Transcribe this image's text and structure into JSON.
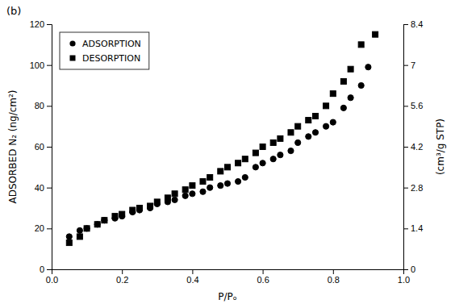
{
  "chart_data": {
    "type": "scatter",
    "xlabel": "P/Pₒ",
    "ylabel": "ADSORBED N₂ (ng/cm²)",
    "y2label": "(cm³/g STP)",
    "annotations": [
      "(b)"
    ],
    "series": [
      {
        "name": "ADSORPTION",
        "color": "#000000",
        "marker": "circle",
        "x": [
          0.05,
          0.08,
          0.1,
          0.13,
          0.15,
          0.18,
          0.2,
          0.23,
          0.25,
          0.28,
          0.3,
          0.33,
          0.35,
          0.38,
          0.4,
          0.43,
          0.45,
          0.48,
          0.5,
          0.53,
          0.55,
          0.58,
          0.6,
          0.63,
          0.65,
          0.68,
          0.7,
          0.73,
          0.75,
          0.78,
          0.8,
          0.83,
          0.85,
          0.88,
          0.9
        ],
        "values": [
          16,
          19,
          20,
          22,
          24,
          25,
          26,
          28,
          29,
          30,
          32,
          33,
          34,
          36,
          37,
          38,
          40,
          41,
          42,
          43,
          45,
          50,
          52,
          54,
          56,
          58,
          62,
          65,
          67,
          70,
          72,
          79,
          84,
          90,
          99
        ]
      },
      {
        "name": "DESORPTION",
        "color": "#000000",
        "marker": "square",
        "x": [
          0.05,
          0.08,
          0.1,
          0.13,
          0.15,
          0.18,
          0.2,
          0.23,
          0.25,
          0.28,
          0.3,
          0.33,
          0.35,
          0.38,
          0.4,
          0.43,
          0.45,
          0.48,
          0.5,
          0.53,
          0.55,
          0.58,
          0.6,
          0.63,
          0.65,
          0.68,
          0.7,
          0.73,
          0.75,
          0.78,
          0.8,
          0.83,
          0.85,
          0.88,
          0.92
        ],
        "values": [
          13,
          16,
          20,
          22,
          24,
          26,
          27,
          29,
          30,
          31,
          33,
          35,
          37,
          39,
          41,
          43,
          45,
          48,
          50,
          52,
          54,
          57,
          60,
          62,
          64,
          67,
          70,
          73,
          75,
          80,
          86,
          92,
          98,
          110,
          115
        ]
      }
    ],
    "xlim": [
      0,
      1.0
    ],
    "xticks": [
      {
        "value": 0.0,
        "label": "0.0"
      },
      0.2,
      0.4,
      0.6,
      0.8,
      {
        "value": 1.0,
        "label": "1.0"
      }
    ],
    "ylim": [
      0,
      120
    ],
    "yticks": [
      0,
      20,
      40,
      60,
      80,
      100,
      120
    ],
    "y2lim": [
      0,
      8.4
    ],
    "y2ticks": [
      0,
      1.4,
      2.8,
      4.2,
      5.6,
      7.0,
      8.4
    ],
    "grid": false,
    "legend": "upper left"
  }
}
